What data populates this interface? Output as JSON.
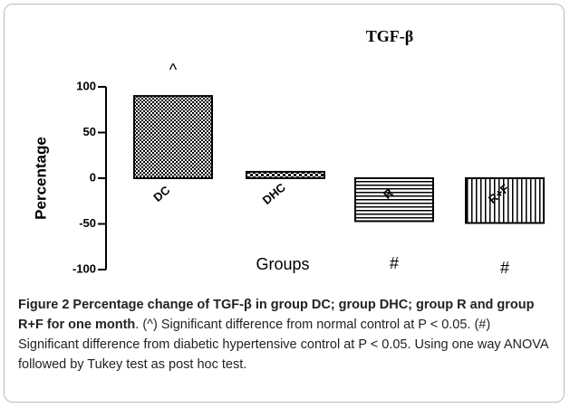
{
  "chart_data": {
    "type": "bar",
    "title": "TGF-β",
    "y_label": "Percentage",
    "x_label": "Groups",
    "categories": [
      "DC",
      "DHC",
      "R",
      "R+F"
    ],
    "values": [
      90,
      7,
      -47,
      -49
    ],
    "annotations": [
      "^",
      null,
      "#",
      "#"
    ],
    "ylim": [
      -100,
      100
    ],
    "yticks": [
      -100,
      -50,
      0,
      50,
      100
    ],
    "grid": false
  },
  "caption": {
    "bold": "Figure 2 Percentage change of TGF-β in group DC; group DHC; group R and group R+F for one month",
    "text": ". (^) Significant difference from normal control at P < 0.05. (#) Significant difference from diabetic hypertensive control at P < 0.05. Using one way ANOVA followed by Tukey test as post hoc test."
  }
}
